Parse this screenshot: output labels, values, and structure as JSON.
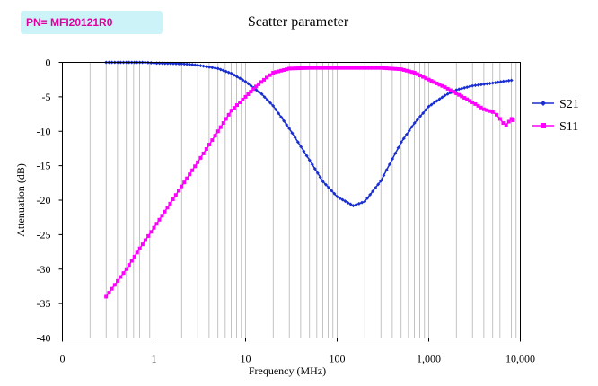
{
  "badge": {
    "text": "PN= MFI20121R0"
  },
  "colors": {
    "s21": "#1a2fd0",
    "s11": "#ff00ff",
    "grid": "#9a9a9a",
    "axis": "#000000",
    "badge_bg": "#ccf3f8",
    "badge_text": "#e000a0"
  },
  "chart_data": {
    "type": "line",
    "title": "Scatter parameter",
    "xlabel": "Frequency (MHz)",
    "ylabel": "Attenuation (dB)",
    "xscale": "log",
    "x_ticks": [
      {
        "value": 0.1,
        "label": "0"
      },
      {
        "value": 1,
        "label": "1"
      },
      {
        "value": 10,
        "label": "10"
      },
      {
        "value": 100,
        "label": "100"
      },
      {
        "value": 1000,
        "label": "1,000"
      },
      {
        "value": 10000,
        "label": "10,000"
      }
    ],
    "xlim": [
      0.1,
      10000
    ],
    "ylim": [
      -40,
      0
    ],
    "y_ticks": [
      0,
      -5,
      -10,
      -15,
      -20,
      -25,
      -30,
      -35,
      -40
    ],
    "grid": "vertical log grid",
    "legend_position": "right",
    "series": [
      {
        "name": "S21",
        "marker": "diamond",
        "points": [
          [
            0.3,
            0
          ],
          [
            0.5,
            0
          ],
          [
            0.8,
            0
          ],
          [
            1,
            -0.1
          ],
          [
            2,
            -0.2
          ],
          [
            3,
            -0.4
          ],
          [
            5,
            -0.9
          ],
          [
            7,
            -1.6
          ],
          [
            10,
            -2.8
          ],
          [
            15,
            -4.6
          ],
          [
            20,
            -6.3
          ],
          [
            30,
            -9.6
          ],
          [
            50,
            -14.2
          ],
          [
            70,
            -17.3
          ],
          [
            100,
            -19.5
          ],
          [
            150,
            -20.8
          ],
          [
            200,
            -20.2
          ],
          [
            300,
            -17.2
          ],
          [
            500,
            -11.6
          ],
          [
            700,
            -8.8
          ],
          [
            1000,
            -6.4
          ],
          [
            1500,
            -4.8
          ],
          [
            2000,
            -4.0
          ],
          [
            3000,
            -3.4
          ],
          [
            5000,
            -3.0
          ],
          [
            7000,
            -2.7
          ],
          [
            8000,
            -2.6
          ]
        ]
      },
      {
        "name": "S11",
        "marker": "square",
        "points": [
          [
            0.3,
            -34
          ],
          [
            0.5,
            -30
          ],
          [
            0.7,
            -27
          ],
          [
            1,
            -24
          ],
          [
            1.5,
            -20.5
          ],
          [
            2,
            -18
          ],
          [
            3,
            -14.5
          ],
          [
            5,
            -10
          ],
          [
            7,
            -7
          ],
          [
            10,
            -5
          ],
          [
            13,
            -3.5
          ],
          [
            17,
            -2.2
          ],
          [
            20,
            -1.5
          ],
          [
            30,
            -0.9
          ],
          [
            50,
            -0.8
          ],
          [
            100,
            -0.8
          ],
          [
            300,
            -0.8
          ],
          [
            500,
            -1.0
          ],
          [
            700,
            -1.5
          ],
          [
            1000,
            -2.5
          ],
          [
            1500,
            -3.6
          ],
          [
            2000,
            -4.5
          ],
          [
            3000,
            -5.8
          ],
          [
            4000,
            -6.8
          ],
          [
            5000,
            -7.2
          ],
          [
            5500,
            -7.6
          ],
          [
            6000,
            -8.2
          ],
          [
            6500,
            -8.8
          ],
          [
            7000,
            -9.1
          ],
          [
            7500,
            -8.6
          ],
          [
            8000,
            -8.2
          ],
          [
            8300,
            -8.4
          ]
        ]
      }
    ]
  }
}
